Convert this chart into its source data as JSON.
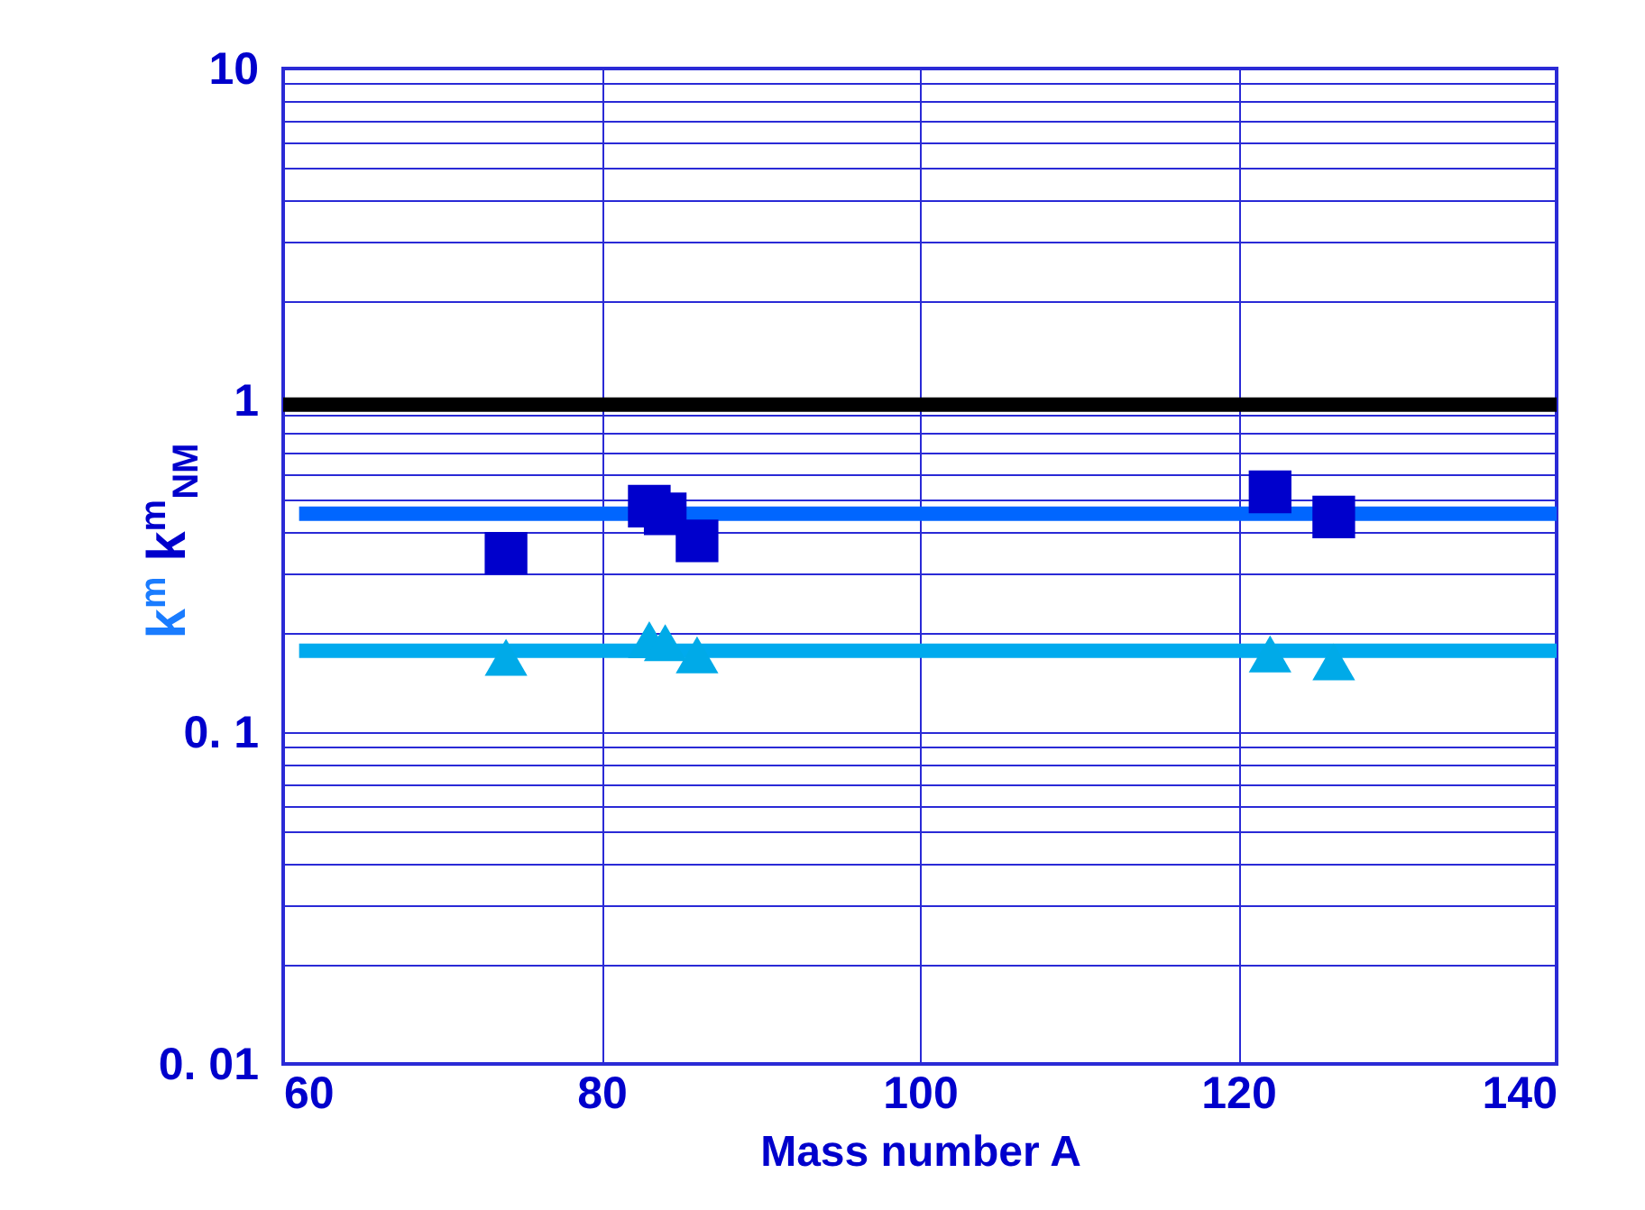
{
  "chart_data": {
    "type": "scatter",
    "xlabel": "Mass number A",
    "ylabel": "k$^{m}$  k$^{m}$$_{NM}$",
    "log": "y",
    "grid": true,
    "xlim": [
      60,
      140
    ],
    "xticks": [
      60,
      80,
      100,
      120,
      140
    ],
    "ylim": [
      0.01,
      10
    ],
    "yticks": [
      {
        "value": 0.01,
        "label": "0. 01"
      },
      {
        "value": 0.02,
        "label": null
      },
      {
        "value": 0.03,
        "label": null
      },
      {
        "value": 0.04,
        "label": null
      },
      {
        "value": 0.05,
        "label": null
      },
      {
        "value": 0.06,
        "label": null
      },
      {
        "value": 0.07,
        "label": null
      },
      {
        "value": 0.08,
        "label": null
      },
      {
        "value": 0.09,
        "label": null
      },
      {
        "value": 0.1,
        "label": "0. 1"
      },
      {
        "value": 0.2,
        "label": null
      },
      {
        "value": 0.3,
        "label": null
      },
      {
        "value": 0.4,
        "label": null
      },
      {
        "value": 0.5,
        "label": null
      },
      {
        "value": 0.6,
        "label": null
      },
      {
        "value": 0.7,
        "label": null
      },
      {
        "value": 0.8,
        "label": null
      },
      {
        "value": 0.9,
        "label": null
      },
      1,
      {
        "value": 2,
        "label": null
      },
      {
        "value": 3,
        "label": null
      },
      {
        "value": 4,
        "label": null
      },
      {
        "value": 5,
        "label": null
      },
      {
        "value": 6,
        "label": null
      },
      {
        "value": 7,
        "label": null
      },
      {
        "value": 8,
        "label": null
      },
      {
        "value": 9,
        "label": null
      },
      10
    ],
    "series": [
      {
        "type": "line",
        "color": "#000000",
        "x": [
          60,
          140
        ],
        "values": [
          0.97,
          0.97
        ],
        "line_style": "solid"
      },
      {
        "type": "line",
        "color": "#0066ff",
        "x": [
          61,
          140
        ],
        "values": [
          0.455,
          0.455
        ],
        "line_style": "solid"
      },
      {
        "type": "line",
        "color": "#00aaee",
        "x": [
          61,
          140
        ],
        "values": [
          0.176,
          0.176
        ],
        "line_style": "solid"
      },
      {
        "color": "#0000cc",
        "marker": "square",
        "x": [
          74,
          83,
          84,
          86,
          122,
          126
        ],
        "values": [
          0.346,
          0.48,
          0.455,
          0.377,
          0.53,
          0.445
        ]
      },
      {
        "color": "#00aae8",
        "marker": "triangle",
        "x": [
          74,
          83,
          84,
          86,
          122,
          126
        ],
        "values": [
          0.168,
          0.19,
          0.186,
          0.171,
          0.172,
          0.163
        ]
      }
    ]
  }
}
